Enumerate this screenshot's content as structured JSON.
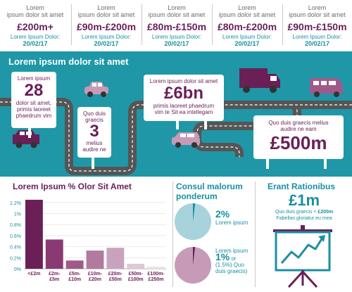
{
  "stats": [
    {
      "label": "Lorem",
      "label2": "ipsum dolor sit amet",
      "range": "£200m+",
      "updated": "Lorem Ipsum Dolor:",
      "date": "20/02/17"
    },
    {
      "label": "Lorem",
      "label2": "ipsum dolor sit amet",
      "range": "£90m-£200m",
      "updated": "Lorem Ipsum Dolor:",
      "date": "20/02/17"
    },
    {
      "label": "Lorem",
      "label2": "ipsum dolor sit amet",
      "range": "£80m-£150m",
      "updated": "Lorem Ipsum Dolor:",
      "date": "20/02/17"
    },
    {
      "label": "Lorem",
      "label2": "ipsum dolor sit amet",
      "range": "£80m-£200m",
      "updated": "Lorem Ipsum Dolor:",
      "date": "20/02/17"
    },
    {
      "label": "Lorem",
      "label2": "ipsum dolor sit amet",
      "range": "£90m-£150m",
      "updated": "Lorem Ipsum Dolor:",
      "date": "20/02/17"
    }
  ],
  "road": {
    "title": "Lorem ipsum dolor sit amet",
    "sign1": {
      "top": "Lorem ipsum",
      "number": "28",
      "bottom1": "dolor sit amet,",
      "bottom2": "primis laoreet",
      "bottom3": "phaedrum vim"
    },
    "sign2": {
      "top1": "Quo duis",
      "top2": "graecis",
      "number": "3",
      "bottom1": "melius",
      "bottom2": "audire ne"
    },
    "sign3": {
      "top": "Lorem ipsum dolor sit amet",
      "number": "£6bn",
      "bottom1": "primis laoreet phaedrum",
      "bottom2": "vim te Sit ea intellegam"
    },
    "sign4": {
      "top1": "Quo duis graecis melius",
      "top2": "audire ne eam",
      "number": "£500m"
    }
  },
  "bar_section": {
    "title": "Lorem Ipsum % Olor Sit Amet"
  },
  "chart_data": {
    "type": "bar",
    "categories": [
      "<£2m",
      "£2m-£5m",
      "£5m-£10m",
      "£10m-£20m",
      "£20m-£50m",
      "£50m-£100m",
      "£100m-£250m"
    ],
    "category_lines": [
      [
        "<£2m"
      ],
      [
        "£2m-",
        "£5m"
      ],
      [
        "£5m-",
        "£10m"
      ],
      [
        "£10m-",
        "£20m"
      ],
      [
        "£20m-",
        "£50m"
      ],
      [
        "£50m-",
        "£100m"
      ],
      [
        "£100m-",
        "£250m"
      ]
    ],
    "values": [
      1.25,
      0.53,
      0.15,
      0.33,
      0.38,
      0.09,
      0.04
    ],
    "colors": [
      "#6a1f57",
      "#8a3a73",
      "#a05a8a",
      "#b27a9e",
      "#c8a3bd",
      "#dcc8d6",
      "#ece2e9"
    ],
    "yticks": [
      "0%",
      "0.2%",
      "0.4%",
      "0.6%",
      "0.8%",
      "1%",
      "1.2%"
    ],
    "ylim": [
      0,
      1.3
    ]
  },
  "pie_section": {
    "title1": "Consul malorum",
    "title2": "ponderum",
    "pie1": {
      "value": "2%",
      "text": "Lorem ipsum",
      "fraction": 0.02,
      "color": "#a8d3dc",
      "accent": "#1a8fa0"
    },
    "pie2": {
      "value": "1%",
      "text1": "Lorem ipsum",
      "or": "or",
      "text2": "(1.5%) Quo",
      "text3": "duis graecis)",
      "fraction": 0.01,
      "color": "#c79bb7",
      "accent": "#6a1f57"
    }
  },
  "erant": {
    "title": "Erant Rationibus",
    "amount": "£1m",
    "line1_prefix": "Quo duis graecis <",
    "line1_value": "£200m",
    "line2": "Fabellas gloriatur eu mea"
  },
  "colors": {
    "teal": "#1f97a7",
    "plum": "#6a1f57",
    "road": "#5a5a5a"
  }
}
